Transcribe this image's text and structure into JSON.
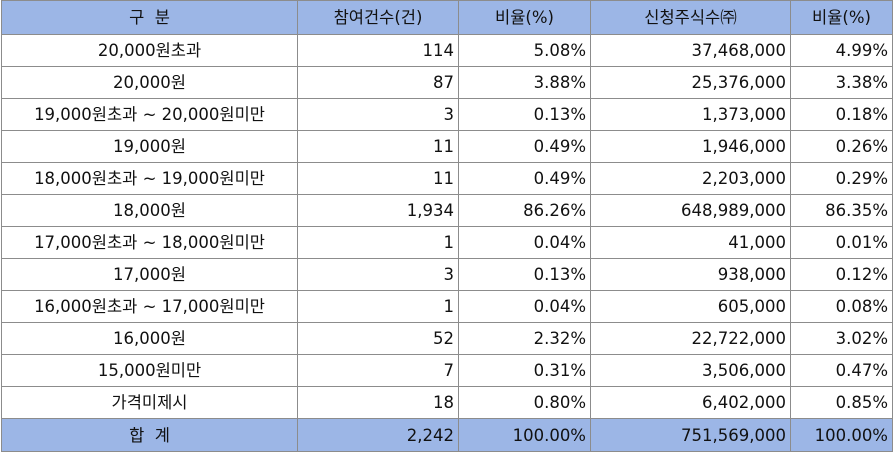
{
  "header": {
    "col1": "구  분",
    "col2": "참여건수(건)",
    "col3": "비율(%)",
    "col4": "신청주식수㈜",
    "col5": "비율(%)"
  },
  "rows": [
    {
      "label": "20,000원초과",
      "count": "114",
      "count_ratio": "5.08%",
      "shares": "37,468,000",
      "shares_ratio": "4.99%"
    },
    {
      "label": "20,000원",
      "count": "87",
      "count_ratio": "3.88%",
      "shares": "25,376,000",
      "shares_ratio": "3.38%"
    },
    {
      "label": "19,000원초과 ~ 20,000원미만",
      "count": "3",
      "count_ratio": "0.13%",
      "shares": "1,373,000",
      "shares_ratio": "0.18%"
    },
    {
      "label": "19,000원",
      "count": "11",
      "count_ratio": "0.49%",
      "shares": "1,946,000",
      "shares_ratio": "0.26%"
    },
    {
      "label": "18,000원초과 ~ 19,000원미만",
      "count": "11",
      "count_ratio": "0.49%",
      "shares": "2,203,000",
      "shares_ratio": "0.29%"
    },
    {
      "label": "18,000원",
      "count": "1,934",
      "count_ratio": "86.26%",
      "shares": "648,989,000",
      "shares_ratio": "86.35%"
    },
    {
      "label": "17,000원초과 ~ 18,000원미만",
      "count": "1",
      "count_ratio": "0.04%",
      "shares": "41,000",
      "shares_ratio": "0.01%"
    },
    {
      "label": "17,000원",
      "count": "3",
      "count_ratio": "0.13%",
      "shares": "938,000",
      "shares_ratio": "0.12%"
    },
    {
      "label": "16,000원초과 ~ 17,000원미만",
      "count": "1",
      "count_ratio": "0.04%",
      "shares": "605,000",
      "shares_ratio": "0.08%"
    },
    {
      "label": "16,000원",
      "count": "52",
      "count_ratio": "2.32%",
      "shares": "22,722,000",
      "shares_ratio": "3.02%"
    },
    {
      "label": "15,000원미만",
      "count": "7",
      "count_ratio": "0.31%",
      "shares": "3,506,000",
      "shares_ratio": "0.47%"
    },
    {
      "label": "가격미제시",
      "count": "18",
      "count_ratio": "0.80%",
      "shares": "6,402,000",
      "shares_ratio": "0.85%"
    }
  ],
  "total": {
    "label": "합  계",
    "count": "2,242",
    "count_ratio": "100.00%",
    "shares": "751,569,000",
    "shares_ratio": "100.00%"
  },
  "colors": {
    "header_bg": "#9cb6e6",
    "border": "#8c8c8c"
  }
}
